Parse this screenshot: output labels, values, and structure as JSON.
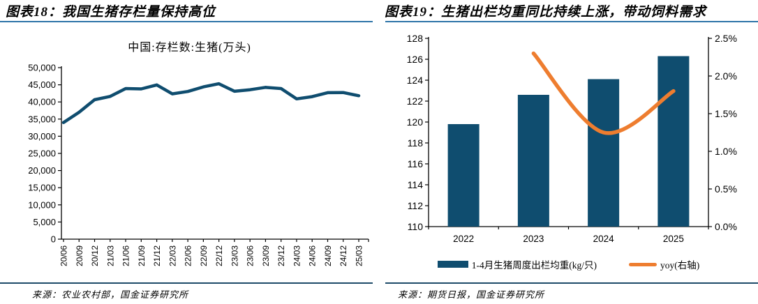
{
  "colors": {
    "dark_blue": "#0f4d6f",
    "orange": "#ee7d2f",
    "title_rule": "#2e74a8",
    "source_rule": "#1d4a68",
    "axis": "#000000"
  },
  "panels": [
    {
      "title": "图表18：我国生猪存栏量保持高位",
      "source": "来源：农业农村部，国金证券研究所"
    },
    {
      "title": "图表19：生猪出栏均重同比持续上涨，带动饲料需求",
      "source": "来源：期货日报，国金证券研究所",
      "legend": [
        {
          "swatch": "bar",
          "label": "1-4月生猪周度出栏均重(kg/只)",
          "color": "#0f4d6f"
        },
        {
          "swatch": "line",
          "label": "yoy(右轴)",
          "color": "#ee7d2f"
        }
      ]
    }
  ],
  "chart_data": [
    {
      "type": "line",
      "title": "中国:存栏数:生猪(万头)",
      "categories": [
        "20/06",
        "20/09",
        "20/12",
        "21/03",
        "21/06",
        "21/09",
        "21/12",
        "22/03",
        "22/06",
        "22/09",
        "22/12",
        "23/03",
        "23/06",
        "23/09",
        "23/12",
        "24/03",
        "24/06",
        "24/09",
        "24/12",
        "25/03"
      ],
      "values": [
        34000,
        37000,
        40650,
        41600,
        43900,
        43800,
        44950,
        42350,
        43050,
        44400,
        45300,
        43100,
        43550,
        44250,
        43900,
        40900,
        41550,
        42700,
        42750,
        41800
      ],
      "ylim": [
        0,
        50000
      ],
      "ytick_step": 5000,
      "grid": false,
      "legend_position": "none",
      "line_color": "#0f4d6f"
    },
    {
      "type": "bar",
      "categories": [
        "2022",
        "2023",
        "2024",
        "2025"
      ],
      "series": [
        {
          "name": "1-4月生猪周度出栏均重(kg/只)",
          "type": "bar",
          "axis": "left",
          "values": [
            119.8,
            122.6,
            124.1,
            126.3
          ],
          "color": "#0f4d6f"
        },
        {
          "name": "yoy(右轴)",
          "type": "line",
          "axis": "right",
          "values": [
            null,
            2.3,
            1.25,
            1.8
          ],
          "unit": "%",
          "color": "#ee7d2f"
        }
      ],
      "left_ylim": [
        110,
        128
      ],
      "left_ytick_step": 2,
      "right_ylim": [
        0.0,
        2.5
      ],
      "right_ytick_step": 0.5,
      "grid": false,
      "legend_position": "bottom"
    }
  ]
}
